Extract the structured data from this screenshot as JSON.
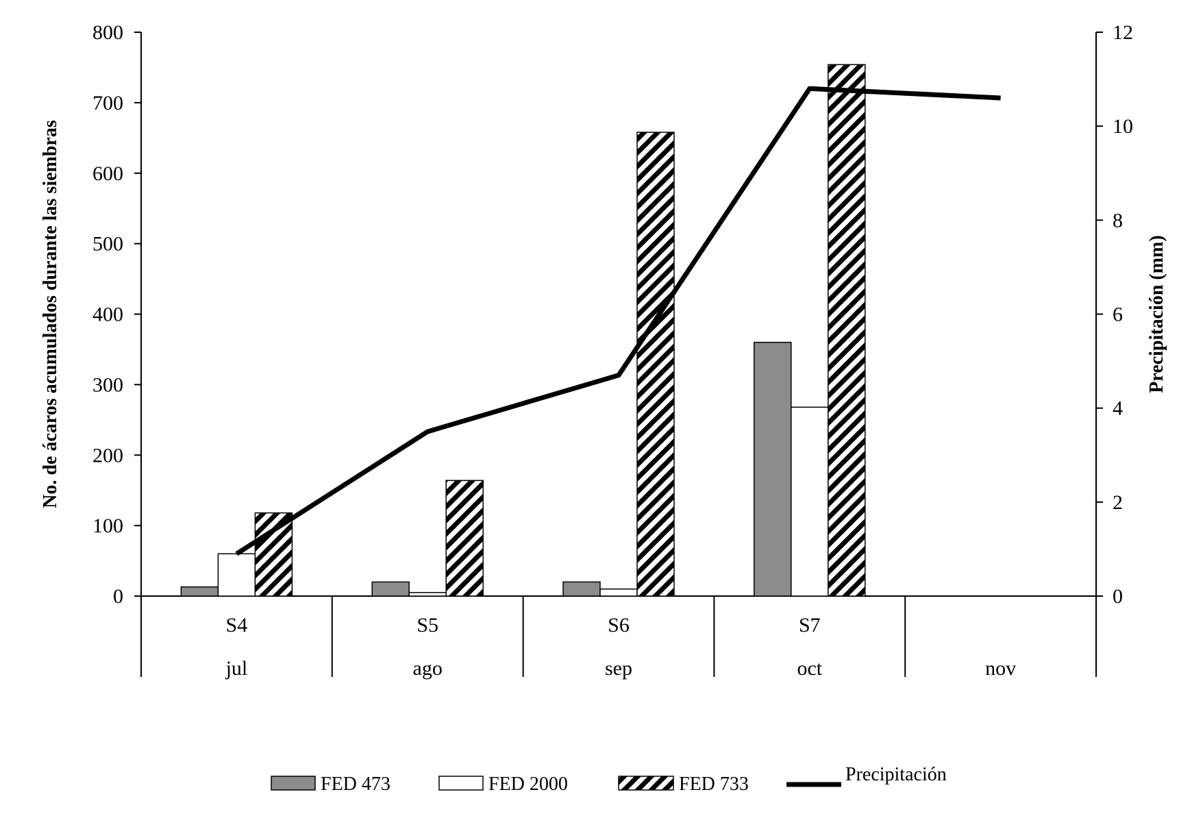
{
  "chart_data": {
    "type": "bar",
    "title": "",
    "categories": [
      "S4",
      "S5",
      "S6",
      "S7",
      ""
    ],
    "months": [
      "jul",
      "ago",
      "sep",
      "oct",
      "nov"
    ],
    "series": [
      {
        "name": "FED 473",
        "kind": "bar",
        "axis": "left",
        "fill": "gray",
        "values": [
          13,
          20,
          20,
          360,
          null
        ]
      },
      {
        "name": "FED 2000",
        "kind": "bar",
        "axis": "left",
        "fill": "white",
        "values": [
          60,
          5,
          10,
          268,
          null
        ]
      },
      {
        "name": "FED 733",
        "kind": "bar",
        "axis": "left",
        "fill": "hatch",
        "values": [
          118,
          164,
          658,
          754,
          null
        ]
      },
      {
        "name": "Precipitación",
        "kind": "line",
        "axis": "right",
        "values": [
          0.9,
          3.5,
          4.7,
          10.8,
          10.6
        ]
      }
    ],
    "ylabel": "No. de ácaros acumulados durante las siembras",
    "y2label": "Precipitación (mm)",
    "ylim": [
      0,
      800
    ],
    "y2lim": [
      0,
      12
    ],
    "yticks": [
      0,
      100,
      200,
      300,
      400,
      500,
      600,
      700,
      800
    ],
    "y2ticks": [
      0,
      2,
      4,
      6,
      8,
      10,
      12
    ],
    "grid": false,
    "legend_position": "bottom",
    "colors": {
      "gray": "#8c8c8c",
      "white": "#ffffff",
      "line": "#000000",
      "stroke": "#000000"
    }
  }
}
